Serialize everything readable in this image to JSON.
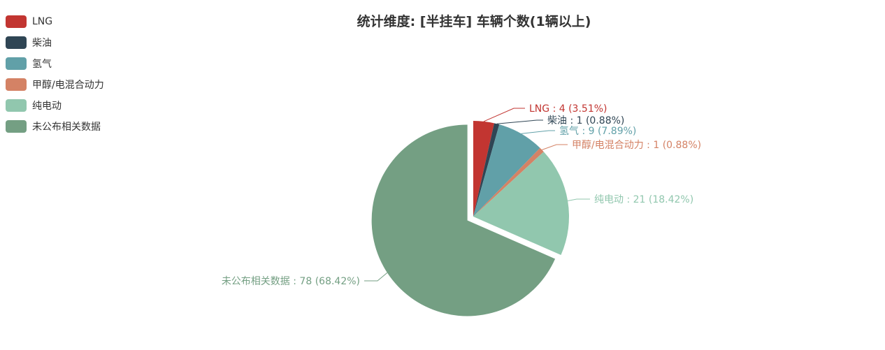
{
  "chart_data": {
    "type": "pie",
    "title": "统计维度: [半挂车] 车辆个数(1辆以上)",
    "legend_position": "top-left",
    "label_format": "{name} : {value} ({percent}%)",
    "slices": [
      {
        "name": "LNG",
        "value": 4,
        "percent": "3.51",
        "color": "#c23531"
      },
      {
        "name": "柴油",
        "value": 1,
        "percent": "0.88",
        "color": "#2f4554"
      },
      {
        "name": "氢气",
        "value": 9,
        "percent": "7.89",
        "color": "#61a0a8"
      },
      {
        "name": "甲醇/电混合动力",
        "value": 1,
        "percent": "0.88",
        "color": "#d48265"
      },
      {
        "name": "纯电动",
        "value": 21,
        "percent": "18.42",
        "color": "#91c7ae"
      },
      {
        "name": "未公布相关数据",
        "value": 78,
        "percent": "68.42",
        "color": "#749f83",
        "exploded": true
      }
    ]
  }
}
